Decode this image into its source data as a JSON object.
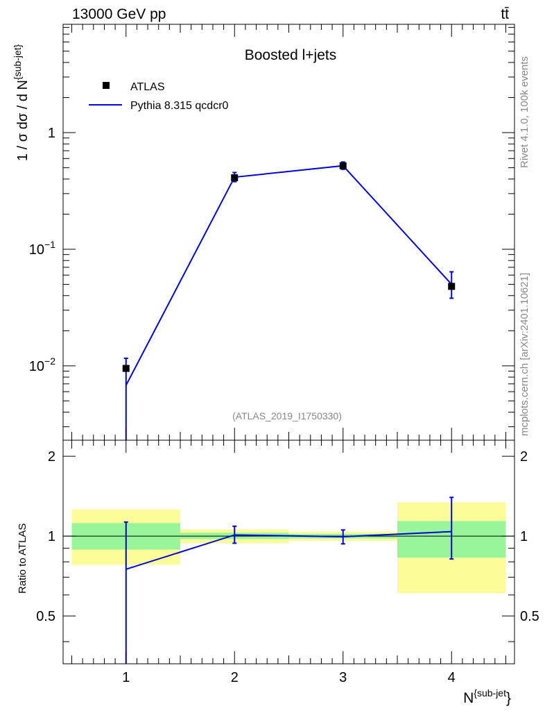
{
  "header": {
    "energy_label": "13000 GeV pp",
    "process_label": "tt̄"
  },
  "side_labels": {
    "rivet": "Rivet 4.1.0,  100k events",
    "source": "mcplots.cern.ch [arXiv:2401.10621]"
  },
  "colors": {
    "mc_line": "#0000dd",
    "data_marker": "#000000",
    "band_inner": "#99f599",
    "band_outer": "#fcfc99"
  },
  "chart_data": [
    {
      "type": "scatter",
      "panel": "main",
      "title": "Boosted l+jets",
      "analysis_label": "(ATLAS_2019_I1750330)",
      "ylabel": "1 / σ dσ / d N^{sub-jet}",
      "yscale": "log",
      "xlim": [
        0.42,
        4.58
      ],
      "ylim": [
        0.0023,
        8.5
      ],
      "y_ticks": [
        {
          "value": 0.01,
          "base": "10",
          "exp": "−2"
        },
        {
          "value": 0.1,
          "base": "10",
          "exp": "−1"
        },
        {
          "value": 1,
          "base": "1",
          "exp": ""
        }
      ],
      "legend": {
        "position": "top-left",
        "entries": [
          "ATLAS",
          "Pythia 8.315 qcdcr0"
        ]
      },
      "series": [
        {
          "name": "ATLAS",
          "kind": "points",
          "x": [
            1,
            2,
            3,
            4
          ],
          "y": [
            0.0095,
            0.41,
            0.52,
            0.048
          ],
          "err_low": [
            0.0,
            0.04,
            0.04,
            0.0
          ],
          "err_high": [
            0.0,
            0.04,
            0.04,
            0.0
          ]
        },
        {
          "name": "Pythia 8.315 qcdcr0",
          "kind": "line",
          "x": [
            1,
            2,
            3,
            4
          ],
          "y": [
            0.0068,
            0.415,
            0.52,
            0.05
          ],
          "err_low": [
            0.0068,
            0.035,
            0.035,
            0.012
          ],
          "err_high": [
            0.0048,
            0.04,
            0.04,
            0.014
          ]
        }
      ]
    },
    {
      "type": "line",
      "panel": "ratio",
      "ylabel": "Ratio to ATLAS",
      "xlabel": "N^{sub-jet}",
      "xlim": [
        0.42,
        4.58
      ],
      "ylim": [
        0.33,
        2.3
      ],
      "x_ticks": [
        "1",
        "2",
        "3",
        "4"
      ],
      "y_ticks": [
        0.5,
        1,
        2
      ],
      "y_tick_labels": [
        "0.5",
        "1",
        "2"
      ],
      "bands": [
        {
          "x_low": 0.5,
          "x_high": 1.5,
          "inner": [
            0.89,
            1.12
          ],
          "outer": [
            0.78,
            1.26
          ]
        },
        {
          "x_low": 1.5,
          "x_high": 2.5,
          "inner": [
            0.975,
            1.03
          ],
          "outer": [
            0.94,
            1.06
          ]
        },
        {
          "x_low": 2.5,
          "x_high": 3.5,
          "inner": [
            0.98,
            1.02
          ],
          "outer": [
            0.96,
            1.04
          ]
        },
        {
          "x_low": 3.5,
          "x_high": 4.5,
          "inner": [
            0.83,
            1.14
          ],
          "outer": [
            0.61,
            1.34
          ]
        }
      ],
      "series": [
        {
          "name": "Pythia 8.315 qcdcr0",
          "x": [
            1,
            2,
            3,
            4
          ],
          "y": [
            0.75,
            1.01,
            0.995,
            1.04
          ],
          "err_low": [
            0.75,
            0.07,
            0.06,
            0.22
          ],
          "err_high": [
            0.38,
            0.08,
            0.06,
            0.36
          ]
        }
      ]
    }
  ]
}
